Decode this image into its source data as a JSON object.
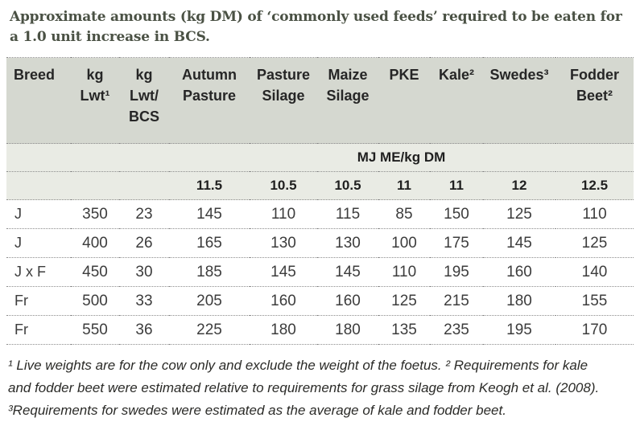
{
  "title": "Approximate amounts (kg DM) of ‘commonly used feeds’ required to be eaten for\na 1.0 unit increase in BCS.",
  "table": {
    "column_headers": [
      "Breed",
      "kg\nLwt¹",
      "kg\nLwt/\nBCS",
      "Autumn\nPasture",
      "Pasture\nSilage",
      "Maize\nSilage",
      "PKE",
      "Kale²",
      "Swedes³",
      "Fodder\nBeet²"
    ],
    "energy_row_label": "MJ ME/kg DM",
    "energy_values": [
      "11.5",
      "10.5",
      "10.5",
      "11",
      "11",
      "12",
      "12.5"
    ],
    "rows": [
      [
        "J",
        "350",
        "23",
        "145",
        "110",
        "115",
        "85",
        "150",
        "125",
        "110"
      ],
      [
        "J",
        "400",
        "26",
        "165",
        "130",
        "130",
        "100",
        "175",
        "145",
        "125"
      ],
      [
        "J x F",
        "450",
        "30",
        "185",
        "145",
        "145",
        "110",
        "195",
        "160",
        "140"
      ],
      [
        "Fr",
        "500",
        "33",
        "205",
        "160",
        "160",
        "125",
        "215",
        "180",
        "155"
      ],
      [
        "Fr",
        "550",
        "36",
        "225",
        "180",
        "180",
        "135",
        "235",
        "195",
        "170"
      ]
    ],
    "footnote": "¹ Live weights are for the cow only and exclude the weight of the foetus. ² Requirements for kale\nand fodder beet were estimated relative to requirements for grass silage from Keogh et al. (2008).\n³Requirements for swedes were estimated as the average of kale and fodder beet."
  },
  "colors": {
    "title_text": "#4a5144",
    "header_bg": "#d5d8d0",
    "subheader_bg": "#e9ebe4",
    "header_text": "#262626",
    "body_text": "#3c3c3c",
    "dotted_border": "#8c8c8c"
  }
}
